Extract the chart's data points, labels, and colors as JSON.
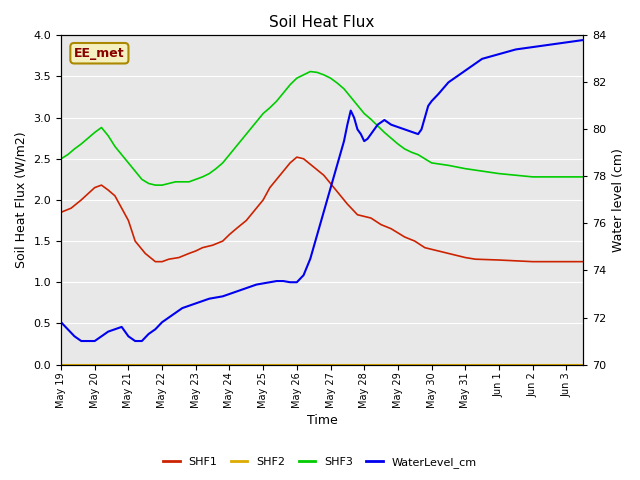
{
  "title": "Soil Heat Flux",
  "xlabel": "Time",
  "ylabel_left": "Soil Heat Flux (W/m2)",
  "ylabel_right": "Water level (cm)",
  "ylim_left": [
    0.0,
    4.0
  ],
  "ylim_right": [
    70,
    84
  ],
  "bg_color": "#e8e8e8",
  "fig_color": "#ffffff",
  "annotation_text": "EE_met",
  "annotation_box_color": "#f5f0c0",
  "annotation_box_edge": "#aa8800",
  "annotation_text_color": "#880000",
  "series": {
    "SHF1": {
      "color": "#cc2200",
      "dates": [
        19,
        19.3,
        19.6,
        20,
        20.2,
        20.4,
        20.6,
        20.8,
        21,
        21.2,
        21.5,
        21.8,
        22,
        22.2,
        22.5,
        22.8,
        23,
        23.2,
        23.5,
        23.8,
        24,
        24.2,
        24.5,
        24.8,
        25,
        25.2,
        25.5,
        25.8,
        26,
        26.2,
        26.5,
        26.8,
        27,
        27.2,
        27.5,
        27.8,
        28,
        28.2,
        28.5,
        28.8,
        29,
        29.2,
        29.5,
        29.8,
        30,
        30.2,
        30.5,
        30.8,
        31,
        31.3,
        32,
        32.5,
        33,
        33.5,
        34,
        34.5
      ],
      "values": [
        1.85,
        1.9,
        2.0,
        2.15,
        2.18,
        2.12,
        2.05,
        1.9,
        1.75,
        1.5,
        1.35,
        1.25,
        1.25,
        1.28,
        1.3,
        1.35,
        1.38,
        1.42,
        1.45,
        1.5,
        1.58,
        1.65,
        1.75,
        1.9,
        2.0,
        2.15,
        2.3,
        2.45,
        2.52,
        2.5,
        2.4,
        2.3,
        2.2,
        2.1,
        1.95,
        1.82,
        1.8,
        1.78,
        1.7,
        1.65,
        1.6,
        1.55,
        1.5,
        1.42,
        1.4,
        1.38,
        1.35,
        1.32,
        1.3,
        1.28,
        1.27,
        1.26,
        1.25,
        1.25,
        1.25,
        1.25
      ]
    },
    "SHF2": {
      "color": "#ddaa00",
      "dates": [
        19,
        20,
        21,
        22,
        23,
        24,
        25,
        26,
        27,
        28,
        29,
        30,
        31,
        32,
        33,
        34,
        34.5
      ],
      "values": [
        0.0,
        0.0,
        0.0,
        0.0,
        0.0,
        0.0,
        0.0,
        0.0,
        0.0,
        0.0,
        0.0,
        0.0,
        0.0,
        0.0,
        0.0,
        0.0,
        0.0
      ]
    },
    "SHF3": {
      "color": "#00cc00",
      "dates": [
        19,
        19.2,
        19.4,
        19.6,
        19.8,
        20,
        20.2,
        20.4,
        20.6,
        20.8,
        21,
        21.2,
        21.4,
        21.6,
        21.8,
        22,
        22.2,
        22.4,
        22.6,
        22.8,
        23,
        23.2,
        23.4,
        23.6,
        23.8,
        24,
        24.2,
        24.4,
        24.6,
        24.8,
        25,
        25.2,
        25.4,
        25.6,
        25.8,
        26,
        26.2,
        26.4,
        26.6,
        26.8,
        27,
        27.2,
        27.4,
        27.6,
        27.8,
        28,
        28.2,
        28.4,
        28.6,
        28.8,
        29,
        29.2,
        29.4,
        29.6,
        29.8,
        30,
        30.5,
        31,
        31.5,
        32,
        32.5,
        33,
        33.5,
        34,
        34.5
      ],
      "values": [
        2.5,
        2.55,
        2.62,
        2.68,
        2.75,
        2.82,
        2.88,
        2.78,
        2.65,
        2.55,
        2.45,
        2.35,
        2.25,
        2.2,
        2.18,
        2.18,
        2.2,
        2.22,
        2.22,
        2.22,
        2.25,
        2.28,
        2.32,
        2.38,
        2.45,
        2.55,
        2.65,
        2.75,
        2.85,
        2.95,
        3.05,
        3.12,
        3.2,
        3.3,
        3.4,
        3.48,
        3.52,
        3.56,
        3.55,
        3.52,
        3.48,
        3.42,
        3.35,
        3.25,
        3.15,
        3.05,
        2.98,
        2.9,
        2.82,
        2.75,
        2.68,
        2.62,
        2.58,
        2.55,
        2.5,
        2.45,
        2.42,
        2.38,
        2.35,
        2.32,
        2.3,
        2.28,
        2.28,
        2.28,
        2.28
      ]
    },
    "WaterLevel_cm": {
      "color": "#0000ee",
      "dates": [
        19,
        19.2,
        19.4,
        19.6,
        19.8,
        20,
        20.2,
        20.4,
        20.6,
        20.8,
        21,
        21.2,
        21.4,
        21.6,
        21.8,
        22,
        22.2,
        22.4,
        22.6,
        22.8,
        23,
        23.2,
        23.4,
        23.6,
        23.8,
        24,
        24.2,
        24.4,
        24.6,
        24.8,
        25,
        25.2,
        25.4,
        25.6,
        25.8,
        26,
        26.2,
        26.4,
        26.6,
        26.8,
        27,
        27.2,
        27.4,
        27.5,
        27.6,
        27.7,
        27.8,
        27.9,
        28,
        28.1,
        28.2,
        28.3,
        28.4,
        28.5,
        28.6,
        28.7,
        28.8,
        29,
        29.2,
        29.4,
        29.6,
        29.7,
        29.8,
        29.9,
        30,
        30.2,
        30.5,
        31,
        31.5,
        32,
        32.5,
        33,
        33.5,
        34,
        34.5
      ],
      "values": [
        71.8,
        71.5,
        71.2,
        71.0,
        71.0,
        71.0,
        71.2,
        71.4,
        71.5,
        71.6,
        71.2,
        71.0,
        71.0,
        71.3,
        71.5,
        71.8,
        72.0,
        72.2,
        72.4,
        72.5,
        72.6,
        72.7,
        72.8,
        72.85,
        72.9,
        73.0,
        73.1,
        73.2,
        73.3,
        73.4,
        73.45,
        73.5,
        73.55,
        73.55,
        73.5,
        73.5,
        73.8,
        74.5,
        75.5,
        76.5,
        77.5,
        78.5,
        79.5,
        80.2,
        80.8,
        80.5,
        80.0,
        79.8,
        79.5,
        79.6,
        79.8,
        80.0,
        80.2,
        80.3,
        80.4,
        80.3,
        80.2,
        80.1,
        80.0,
        79.9,
        79.8,
        80.0,
        80.5,
        81.0,
        81.2,
        81.5,
        82.0,
        82.5,
        83.0,
        83.2,
        83.4,
        83.5,
        83.6,
        83.7,
        83.8
      ]
    }
  },
  "xlim": [
    19,
    34.5
  ],
  "xtick_positions": [
    19,
    20,
    21,
    22,
    23,
    24,
    25,
    26,
    27,
    28,
    29,
    30,
    31,
    32,
    33,
    34
  ],
  "xtick_labels": [
    "May 19",
    "May 20",
    "May 21",
    "May 22",
    "May 23",
    "May 24",
    "May 25",
    "May 26",
    "May 27",
    "May 28",
    "May 29",
    "May 30",
    "May 31",
    "Jun 1",
    "Jun 2",
    "Jun 3"
  ],
  "yticks_left": [
    0.0,
    0.5,
    1.0,
    1.5,
    2.0,
    2.5,
    3.0,
    3.5,
    4.0
  ],
  "yticks_right": [
    70,
    72,
    74,
    76,
    78,
    80,
    82,
    84
  ],
  "legend_items": [
    "SHF1",
    "SHF2",
    "SHF3",
    "WaterLevel_cm"
  ],
  "legend_colors": [
    "#cc2200",
    "#ddaa00",
    "#00cc00",
    "#0000ee"
  ]
}
